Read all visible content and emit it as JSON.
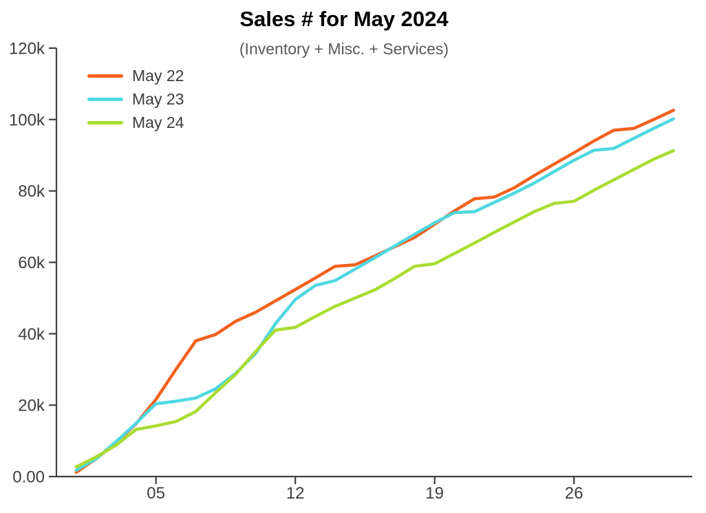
{
  "chart_data": {
    "type": "line",
    "title": "Sales # for May 2024",
    "subtitle": "(Inventory + Misc. + Services)",
    "xlabel": "",
    "ylabel": "",
    "x_unit": "day of May",
    "legend_position": "top-left",
    "grid": false,
    "ylim": [
      0,
      120000
    ],
    "xlim": [
      0,
      31.94
    ],
    "x": [
      1,
      2,
      3,
      4,
      5,
      6,
      7,
      8,
      9,
      10,
      11,
      12,
      13,
      14,
      15,
      16,
      17,
      18,
      19,
      20,
      21,
      22,
      23,
      24,
      25,
      26,
      27,
      28,
      29,
      30,
      31
    ],
    "x_ticks": [
      {
        "label": "05",
        "value": 5
      },
      {
        "label": "12",
        "value": 12
      },
      {
        "label": "19",
        "value": 19
      },
      {
        "label": "26",
        "value": 26
      }
    ],
    "y_ticks": [
      {
        "label": "0.00",
        "value": 0
      },
      {
        "label": "20k",
        "value": 20000
      },
      {
        "label": "40k",
        "value": 40000
      },
      {
        "label": "60k",
        "value": 60000
      },
      {
        "label": "80k",
        "value": 80000
      },
      {
        "label": "100k",
        "value": 100000
      },
      {
        "label": "120k",
        "value": 120000
      }
    ],
    "series": [
      {
        "name": "May 22",
        "color": "#f4611e",
        "values": [
          1200,
          5000,
          9500,
          14800,
          21600,
          30000,
          38000,
          39800,
          43500,
          46000,
          49200,
          52400,
          55600,
          58900,
          59300,
          61800,
          64400,
          67000,
          70700,
          74400,
          77800,
          78300,
          80900,
          84300,
          87500,
          90700,
          94000,
          97000,
          97500,
          100000,
          102600
        ]
      },
      {
        "name": "May 23",
        "color": "#4ed8e0",
        "values": [
          1800,
          5000,
          9800,
          14900,
          20400,
          21100,
          22000,
          24600,
          28900,
          34400,
          42800,
          49600,
          53500,
          54900,
          58100,
          61300,
          64600,
          67900,
          71100,
          73900,
          74200,
          76800,
          79400,
          82200,
          85400,
          88600,
          91400,
          91900,
          94700,
          97500,
          100200
        ]
      },
      {
        "name": "May 24",
        "color": "#aadc32",
        "values": [
          2700,
          5500,
          8800,
          13200,
          14200,
          15400,
          18200,
          23500,
          28600,
          35000,
          41000,
          41800,
          44800,
          47700,
          50000,
          52300,
          55500,
          58900,
          59600,
          62500,
          65400,
          68400,
          71300,
          74200,
          76500,
          77100,
          80200,
          83100,
          86000,
          88900,
          91300
        ]
      }
    ],
    "axis_color": "#3f3f3f",
    "tick_label_color": "#3d3d3d"
  }
}
